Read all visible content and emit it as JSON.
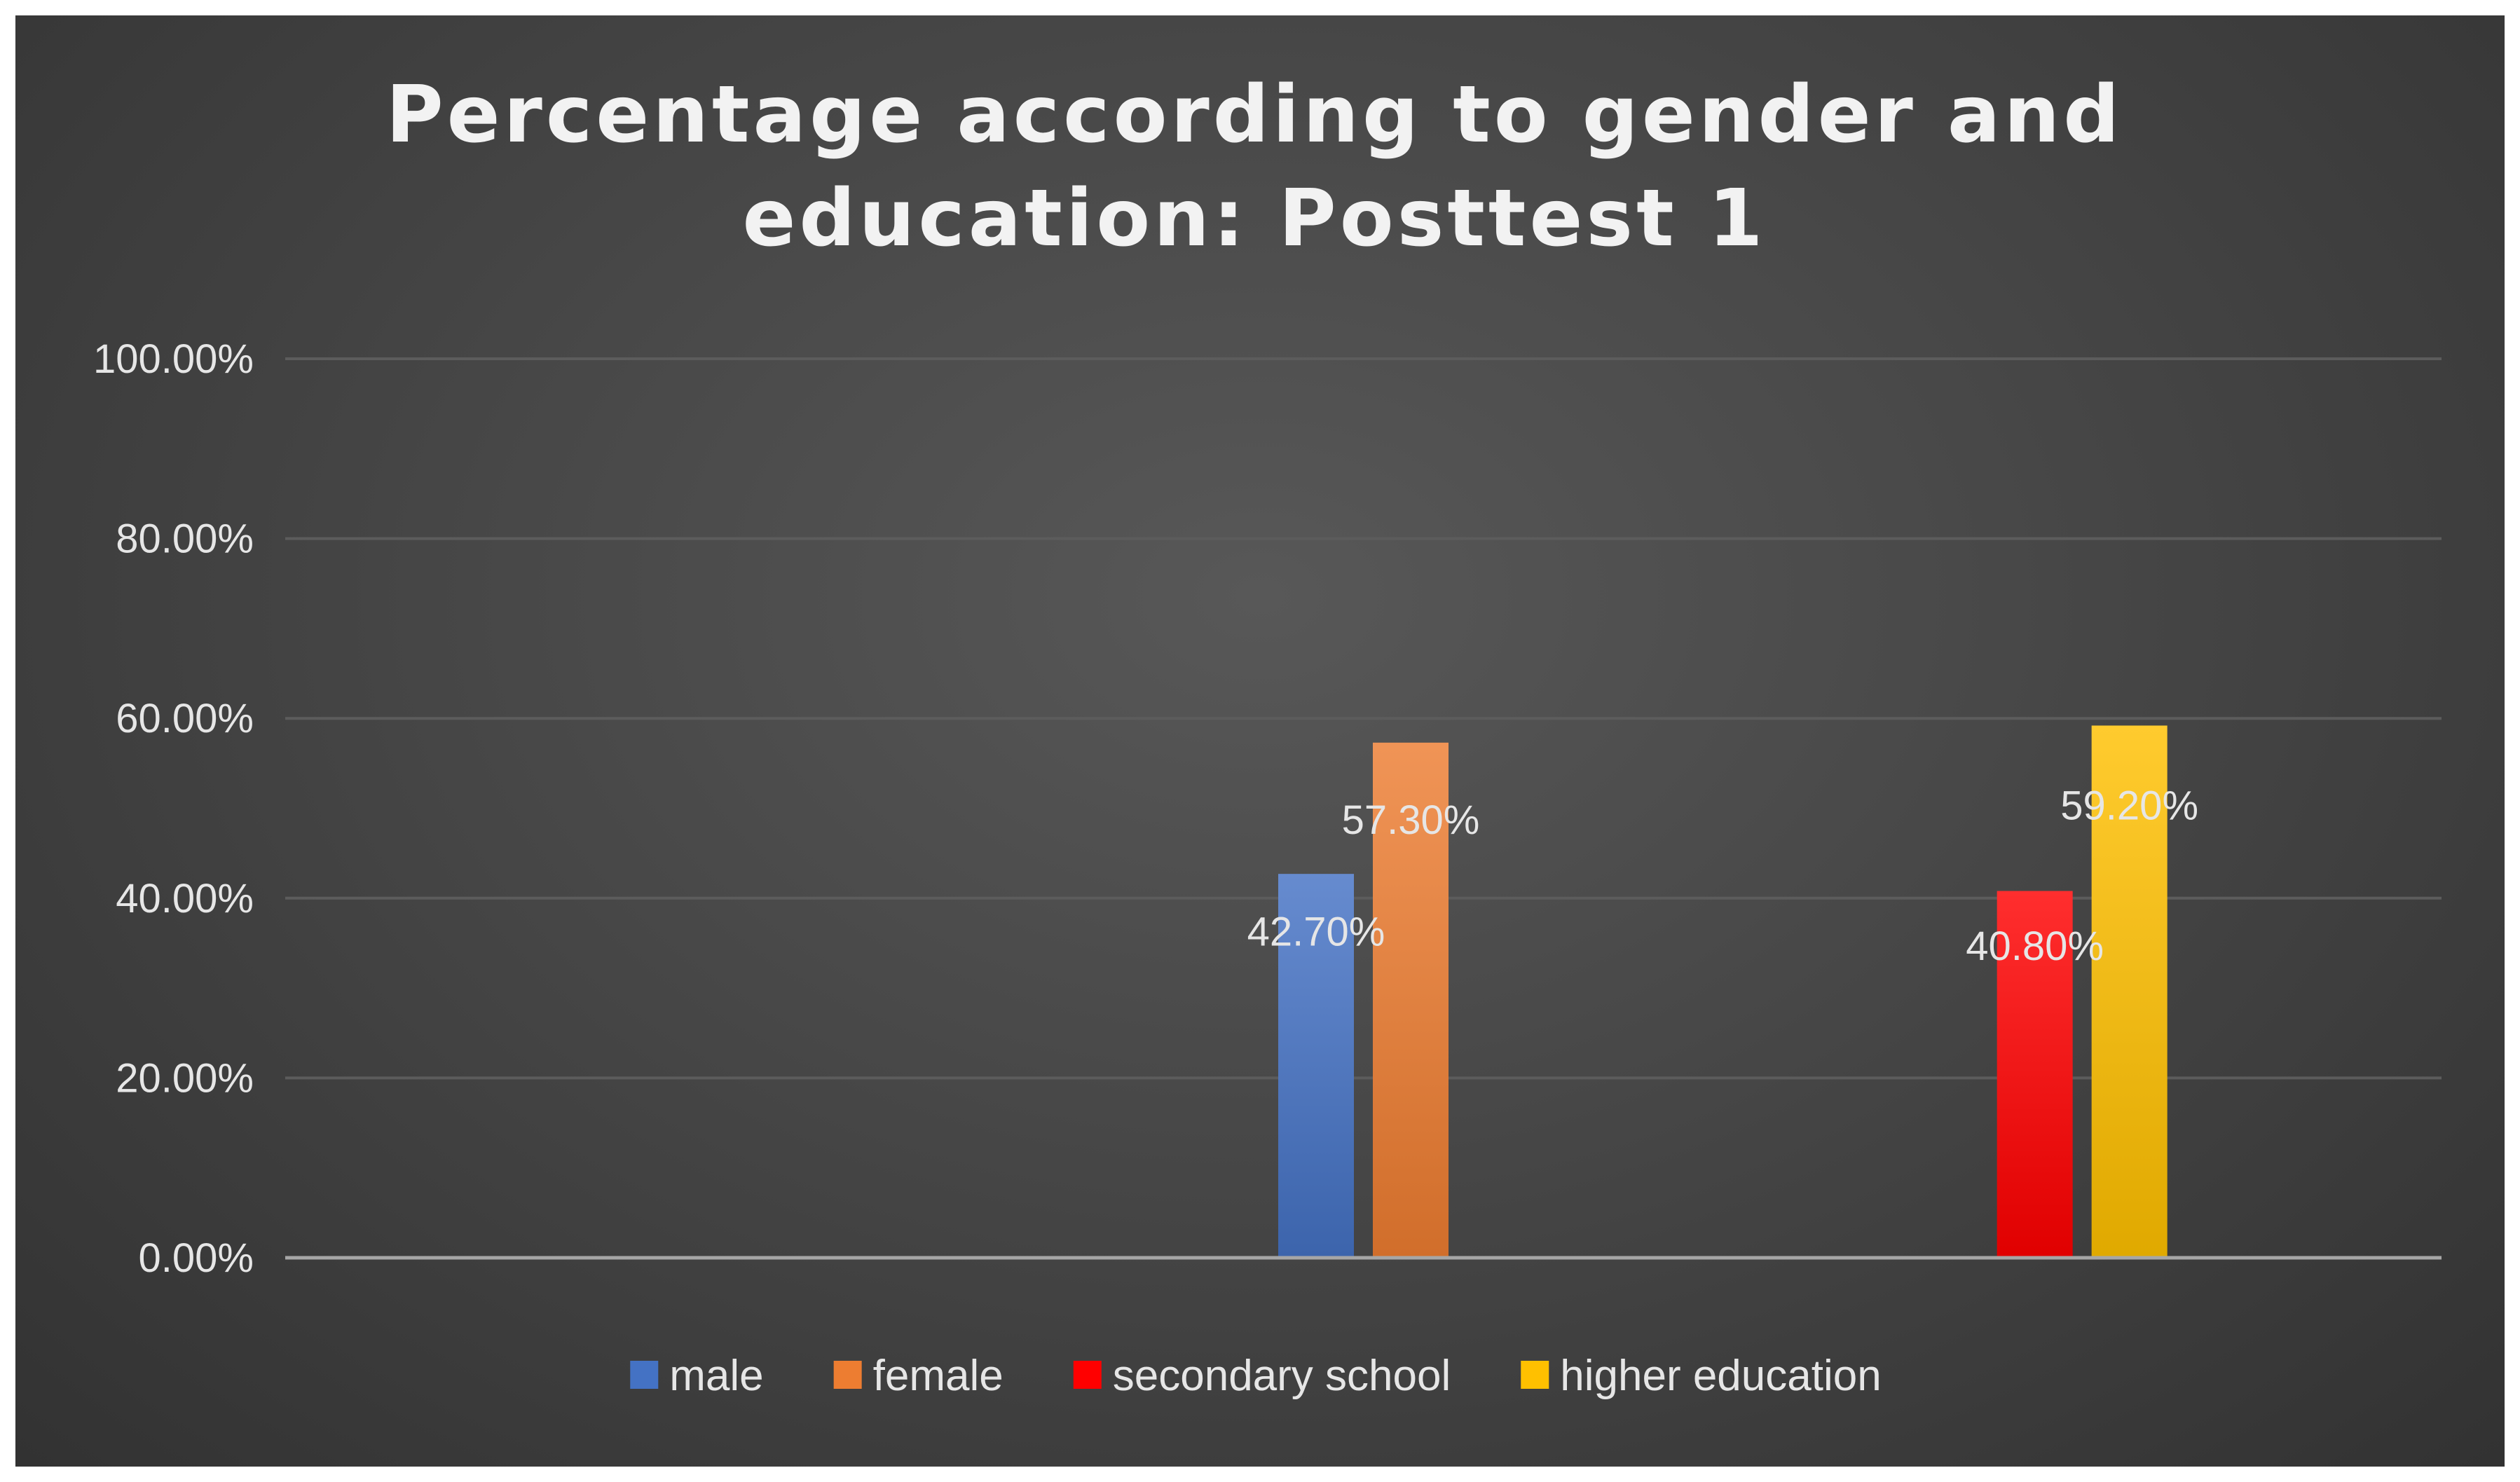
{
  "chart_data": {
    "type": "bar",
    "title_lines": [
      "Percentage according to gender and",
      "education: Posttest 1"
    ],
    "categories": [
      "",
      "",
      ""
    ],
    "series": [
      {
        "name": "male",
        "color": "#4472c4",
        "values": [
          null,
          0.427,
          null
        ],
        "labels": [
          null,
          "42.70%",
          null
        ]
      },
      {
        "name": "female",
        "color": "#ed7d31",
        "values": [
          null,
          0.573,
          null
        ],
        "labels": [
          null,
          "57.30%",
          null
        ]
      },
      {
        "name": "secondary school",
        "color": "#ff0000",
        "values": [
          null,
          null,
          0.408
        ],
        "labels": [
          null,
          null,
          "40.80%"
        ]
      },
      {
        "name": "higher education",
        "color": "#ffc000",
        "values": [
          null,
          null,
          0.592
        ],
        "labels": [
          null,
          null,
          "59.20%"
        ]
      }
    ],
    "ylim": [
      0,
      1
    ],
    "yticks": [
      "0.00%",
      "20.00%",
      "40.00%",
      "60.00%",
      "80.00%",
      "100.00%"
    ],
    "grid": true,
    "legend": "bottom",
    "xlabel": "",
    "ylabel": ""
  }
}
